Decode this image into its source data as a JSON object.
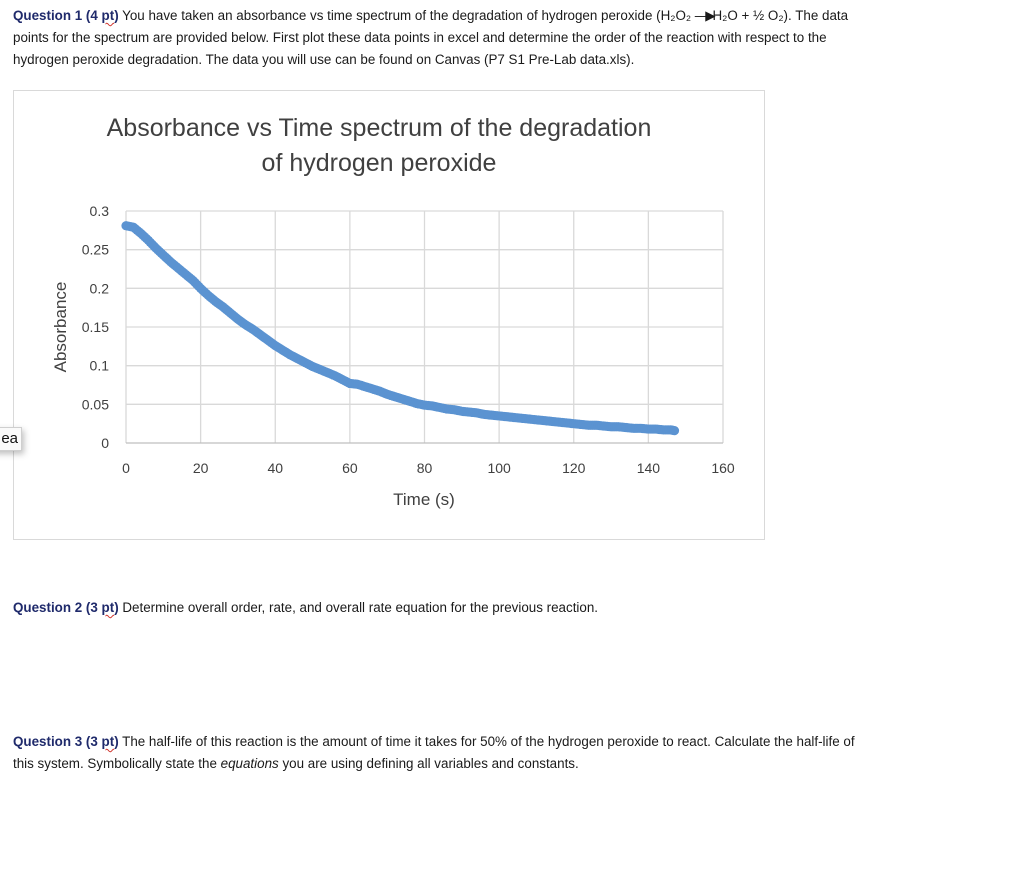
{
  "question1": {
    "label": "Question 1 (4 ",
    "pt": "pt",
    "label_end": ")",
    "line1_text": " You have taken an absorbance vs time spectrum of the degradation of hydrogen peroxide (H₂O₂ ",
    "arrow": "—▶",
    "line1_tail": "H₂O + ½ O₂). The data",
    "line2": "points for the spectrum are provided below. First plot these data points in excel and determine the order of the reaction with respect to the",
    "line3": "hydrogen peroxide degradation.  The data you will use can be found on Canvas (P7 S1 Pre-Lab data.xls)."
  },
  "tooltip_fragment": "ea",
  "chart_data": {
    "type": "scatter",
    "title": "Absorbance vs Time spectrum of the degradation of hydrogen peroxide",
    "title_lines": [
      "Absorbance vs Time spectrum of the degradation",
      "of hydrogen peroxide"
    ],
    "xlabel": "Time (s)",
    "ylabel": "Absorbance",
    "xlim": [
      0,
      160
    ],
    "ylim": [
      0,
      0.3
    ],
    "xticks": [
      "0",
      "20",
      "40",
      "60",
      "80",
      "100",
      "120",
      "140",
      "160"
    ],
    "yticks": [
      "0",
      "0.05",
      "0.1",
      "0.15",
      "0.2",
      "0.25",
      "0.3"
    ],
    "grid": true,
    "legend": null,
    "marker_color": "#5b93d1",
    "series": [
      {
        "name": "Absorbance",
        "x": [
          0,
          2,
          4,
          6,
          8,
          10,
          12,
          14,
          16,
          18,
          20,
          22,
          24,
          26,
          28,
          30,
          32,
          34,
          36,
          38,
          40,
          42,
          44,
          46,
          48,
          50,
          52,
          54,
          56,
          58,
          60,
          62,
          64,
          66,
          68,
          70,
          72,
          74,
          76,
          78,
          80,
          82,
          84,
          86,
          88,
          90,
          92,
          94,
          96,
          98,
          100,
          102,
          104,
          106,
          108,
          110,
          112,
          114,
          116,
          118,
          120,
          122,
          124,
          126,
          128,
          130,
          132,
          134,
          136,
          138,
          140,
          142,
          144,
          146,
          147
        ],
        "y": [
          0.281,
          0.279,
          0.271,
          0.262,
          0.252,
          0.243,
          0.234,
          0.226,
          0.218,
          0.21,
          0.2,
          0.191,
          0.183,
          0.176,
          0.168,
          0.16,
          0.153,
          0.147,
          0.14,
          0.133,
          0.126,
          0.12,
          0.114,
          0.109,
          0.104,
          0.099,
          0.095,
          0.091,
          0.087,
          0.082,
          0.077,
          0.076,
          0.073,
          0.07,
          0.067,
          0.063,
          0.06,
          0.057,
          0.054,
          0.051,
          0.049,
          0.048,
          0.046,
          0.044,
          0.043,
          0.041,
          0.04,
          0.039,
          0.037,
          0.036,
          0.035,
          0.034,
          0.033,
          0.032,
          0.031,
          0.03,
          0.029,
          0.028,
          0.027,
          0.026,
          0.025,
          0.024,
          0.023,
          0.023,
          0.022,
          0.021,
          0.021,
          0.02,
          0.019,
          0.019,
          0.018,
          0.018,
          0.017,
          0.017,
          0.016
        ]
      }
    ]
  },
  "question2": {
    "label": "Question 2 (3 ",
    "pt": "pt",
    "label_end": ")",
    "text": " Determine overall order, rate, and overall rate equation for the previous reaction."
  },
  "question3": {
    "label": "Question 3 (3 ",
    "pt": "pt",
    "label_end": ")",
    "line1_text": " The half-life of this reaction is the amount of time it takes for 50% of the hydrogen peroxide to react.  Calculate the half-life of",
    "line2_pre": "this system.  Symbolically state the ",
    "line2_em": "equations",
    "line2_post": " you are using defining all variables and constants."
  }
}
